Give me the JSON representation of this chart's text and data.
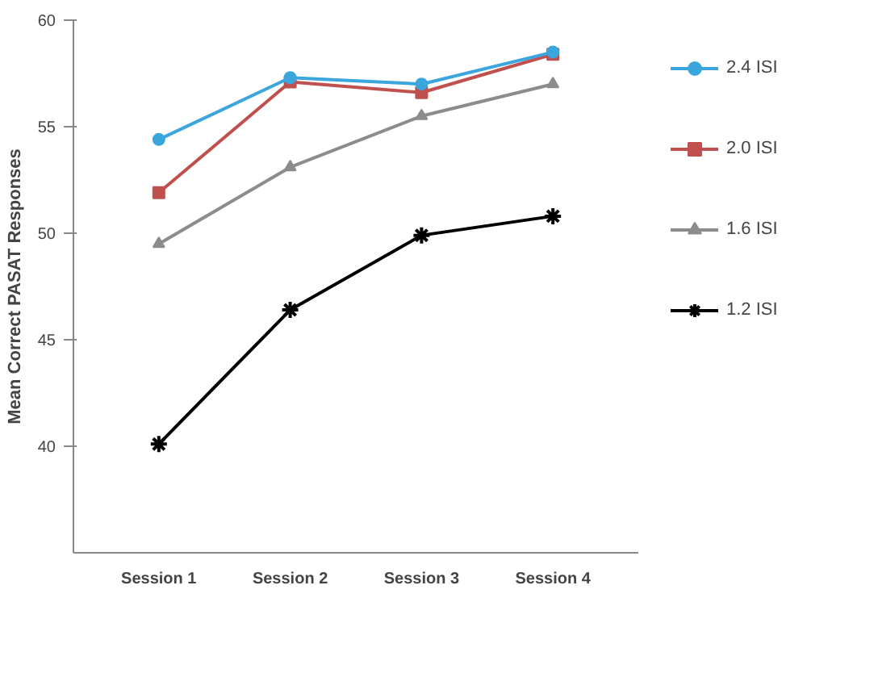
{
  "chart_data": {
    "type": "line",
    "ylabel": "Mean Correct PASAT Responses",
    "categories": [
      "Session 1",
      "Session 2",
      "Session 3",
      "Session 4"
    ],
    "series": [
      {
        "name": "2.4 ISI",
        "color": "#3aa6dd",
        "marker": "circle",
        "values": [
          54.4,
          57.3,
          57.0,
          58.5
        ]
      },
      {
        "name": "2.0 ISI",
        "color": "#c0504d",
        "marker": "square",
        "values": [
          51.9,
          57.1,
          56.6,
          58.4
        ]
      },
      {
        "name": "1.6 ISI",
        "color": "#8c8c8c",
        "marker": "triangle",
        "values": [
          49.5,
          53.1,
          55.5,
          57.0
        ]
      },
      {
        "name": "1.2 ISI",
        "color": "#000000",
        "marker": "cross",
        "values": [
          40.1,
          46.4,
          49.9,
          50.8
        ]
      }
    ],
    "ylim": [
      35,
      60
    ],
    "yticks": [
      40,
      45,
      50,
      55,
      60
    ],
    "grid": false,
    "legend": "right",
    "line_style": "solid"
  }
}
